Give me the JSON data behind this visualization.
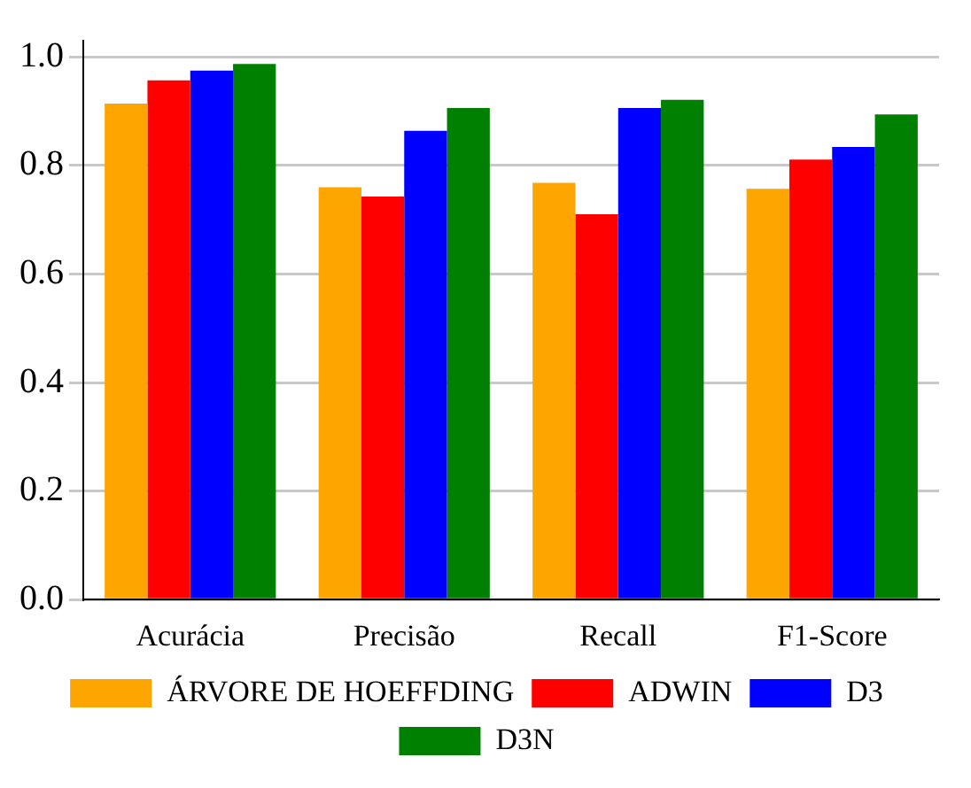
{
  "chart_data": {
    "type": "bar",
    "categories": [
      "Acurácia",
      "Precisão",
      "Recall",
      "F1-Score"
    ],
    "series": [
      {
        "name": "ÁRVORE DE HOEFFDING",
        "color": "#ffa500",
        "values": [
          0.914,
          0.76,
          0.768,
          0.757
        ]
      },
      {
        "name": "ADWIN",
        "color": "#ff0000",
        "values": [
          0.957,
          0.743,
          0.71,
          0.811
        ]
      },
      {
        "name": "D3",
        "color": "#0000ff",
        "values": [
          0.975,
          0.864,
          0.906,
          0.834
        ]
      },
      {
        "name": "D3N",
        "color": "#008000",
        "values": [
          0.987,
          0.906,
          0.921,
          0.894
        ]
      }
    ],
    "ylim": [
      0,
      1.03
    ],
    "yticks": [
      {
        "value": 0,
        "label": "0.0"
      },
      {
        "value": 0.2,
        "label": "0.2"
      },
      {
        "value": 0.4,
        "label": "0.4"
      },
      {
        "value": 0.6,
        "label": "0.6"
      },
      {
        "value": 0.8,
        "label": "0.8"
      },
      {
        "value": 1,
        "label": "1.0"
      }
    ],
    "grid": "y",
    "legend": "bottom"
  }
}
